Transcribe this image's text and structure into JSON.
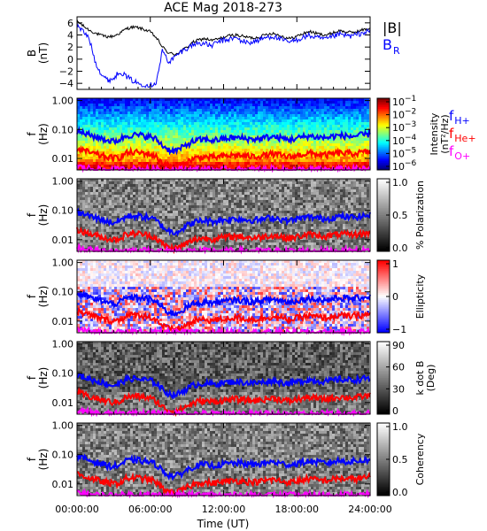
{
  "title": "ACE Mag 2018-273",
  "xaxis": {
    "label": "Time (UT)",
    "range_hours": [
      0,
      24
    ],
    "ticks": [
      {
        "h": 0,
        "label": "00:00:00"
      },
      {
        "h": 6,
        "label": "06:00:00"
      },
      {
        "h": 12,
        "label": "12:00:00"
      },
      {
        "h": 18,
        "label": "18:00:00"
      },
      {
        "h": 24,
        "label": "24:00:00"
      }
    ]
  },
  "freq_axis": {
    "log_range_hz": [
      0.004,
      1.2
    ],
    "ticks": [
      {
        "v": 1.0,
        "label": "1.00"
      },
      {
        "v": 0.1,
        "label": "0.10"
      },
      {
        "v": 0.01,
        "label": "0.01"
      }
    ]
  },
  "legend_B": {
    "total": "|B|",
    "radial_main": "B",
    "radial_sub": "R"
  },
  "legend_f": [
    {
      "main": "f",
      "sub": "H+",
      "color": "#0000ff"
    },
    {
      "main": "f",
      "sub": "He+",
      "color": "#ff0000"
    },
    {
      "main": "f",
      "sub": "O+",
      "color": "#ff00ff"
    }
  ],
  "colors": {
    "bmag": "#000000",
    "br": "#0000ff",
    "fH": "#0000ff",
    "fHe": "#ff0000",
    "fO": "#ff00ff"
  },
  "chart_data": [
    {
      "type": "line",
      "name": "panel-b",
      "ylabel_lines": [
        "B",
        "(nT)"
      ],
      "ylim": [
        -5,
        7
      ],
      "yticks": [
        {
          "v": 6,
          "label": "6"
        },
        {
          "v": 4,
          "label": "4"
        },
        {
          "v": 2,
          "label": "2"
        },
        {
          "v": 0,
          "label": "0"
        },
        {
          "v": -2,
          "label": "−2"
        },
        {
          "v": -4,
          "label": "−4"
        }
      ],
      "x_hours": [
        0,
        0.5,
        1,
        1.5,
        2,
        2.5,
        3,
        3.5,
        4,
        4.5,
        5,
        5.5,
        6,
        6.5,
        7,
        7.5,
        8,
        8.5,
        9,
        9.5,
        10,
        10.5,
        11,
        11.5,
        12,
        12.5,
        13,
        13.5,
        14,
        14.5,
        15,
        15.5,
        16,
        16.5,
        17,
        17.5,
        18,
        18.5,
        19,
        19.5,
        20,
        20.5,
        21,
        21.5,
        22,
        22.5,
        23,
        23.5,
        24
      ],
      "series": [
        {
          "name": "|B|",
          "values": [
            6.3,
            5.5,
            4.8,
            4.3,
            3.9,
            3.7,
            3.8,
            4.3,
            5.0,
            5.3,
            5.2,
            4.9,
            4.5,
            3.5,
            2.0,
            1.0,
            0.8,
            1.3,
            2.0,
            2.8,
            3.2,
            3.4,
            3.1,
            3.3,
            3.6,
            3.9,
            4.0,
            3.8,
            3.6,
            3.5,
            3.7,
            4.1,
            4.3,
            4.0,
            3.6,
            3.4,
            3.8,
            4.2,
            4.6,
            4.3,
            4.1,
            4.0,
            4.4,
            4.7,
            4.5,
            4.4,
            4.6,
            4.9,
            5.1
          ]
        },
        {
          "name": "B_R",
          "values": [
            5.5,
            4.6,
            3.4,
            -0.5,
            -2.5,
            -3.5,
            -3.2,
            -2.0,
            -2.8,
            -3.5,
            -4.0,
            -4.2,
            -4.3,
            -3.8,
            1.5,
            -0.5,
            0.3,
            1.2,
            1.8,
            2.4,
            2.7,
            2.5,
            2.2,
            2.8,
            3.1,
            3.3,
            3.5,
            3.0,
            2.7,
            2.9,
            3.2,
            3.6,
            3.8,
            3.4,
            3.0,
            2.8,
            3.2,
            3.6,
            3.9,
            3.6,
            3.4,
            3.3,
            3.8,
            4.1,
            3.9,
            3.8,
            4.1,
            4.4,
            4.6
          ]
        }
      ]
    },
    {
      "type": "heatmap",
      "name": "panel-intensity",
      "ylabel_lines": [
        "f",
        "(Hz)"
      ],
      "colorbar": {
        "scale": "jet",
        "label_lines": [
          "Intensity",
          "(nT²/Hz)"
        ],
        "ticks": [
          {
            "base": "10",
            "exp": "−1",
            "frac": 0.0
          },
          {
            "base": "10",
            "exp": "−2",
            "frac": 0.2
          },
          {
            "base": "10",
            "exp": "−3",
            "frac": 0.4
          },
          {
            "base": "10",
            "exp": "−4",
            "frac": 0.6
          },
          {
            "base": "10",
            "exp": "−5",
            "frac": 0.8
          },
          {
            "base": "10",
            "exp": "−6",
            "frac": 1.0
          }
        ]
      }
    },
    {
      "type": "heatmap",
      "name": "panel-polarization",
      "ylabel_lines": [
        "f",
        "(Hz)"
      ],
      "colorbar": {
        "scale": "gray",
        "label_lines": [
          "% Polarization"
        ],
        "ticks": [
          {
            "label": "1.0",
            "frac": 0.0
          },
          {
            "label": "0.5",
            "frac": 0.5
          },
          {
            "label": "0.0",
            "frac": 1.0
          }
        ]
      }
    },
    {
      "type": "heatmap",
      "name": "panel-ellipticity",
      "ylabel_lines": [
        "f",
        "(Hz)"
      ],
      "colorbar": {
        "scale": "bwr",
        "label_lines": [
          "Ellipticity"
        ],
        "ticks": [
          {
            "label": "1",
            "frac": 0.0
          },
          {
            "label": "0",
            "frac": 0.5
          },
          {
            "label": "−1",
            "frac": 1.0
          }
        ]
      }
    },
    {
      "type": "heatmap",
      "name": "panel-kdotb",
      "ylabel_lines": [
        "f",
        "(Hz)"
      ],
      "colorbar": {
        "scale": "gray",
        "label_lines": [
          "k dot B",
          "(Deg)"
        ],
        "ticks": [
          {
            "label": "90",
            "frac": 0.0
          },
          {
            "label": "60",
            "frac": 0.333
          },
          {
            "label": "30",
            "frac": 0.667
          },
          {
            "label": "0",
            "frac": 1.0
          }
        ]
      }
    },
    {
      "type": "heatmap",
      "name": "panel-coherency",
      "ylabel_lines": [
        "f",
        "(Hz)"
      ],
      "colorbar": {
        "scale": "gray",
        "label_lines": [
          "Coherency"
        ],
        "ticks": [
          {
            "label": "1.0",
            "frac": 0.0
          },
          {
            "label": "0.5",
            "frac": 0.5
          },
          {
            "label": "0.0",
            "frac": 1.0
          }
        ]
      }
    }
  ],
  "gyrofreq": {
    "x_hours": [
      0,
      0.5,
      1,
      1.5,
      2,
      2.5,
      3,
      3.5,
      4,
      4.5,
      5,
      5.5,
      6,
      6.5,
      7,
      7.5,
      8,
      8.5,
      9,
      9.5,
      10,
      10.5,
      11,
      11.5,
      12,
      12.5,
      13,
      13.5,
      14,
      14.5,
      15,
      15.5,
      16,
      16.5,
      17,
      17.5,
      18,
      18.5,
      19,
      19.5,
      20,
      20.5,
      21,
      21.5,
      22,
      22.5,
      23,
      23.5,
      24
    ],
    "fH": [
      0.085,
      0.075,
      0.065,
      0.055,
      0.05,
      0.042,
      0.038,
      0.045,
      0.06,
      0.065,
      0.063,
      0.06,
      0.055,
      0.045,
      0.028,
      0.02,
      0.018,
      0.022,
      0.03,
      0.038,
      0.043,
      0.045,
      0.042,
      0.044,
      0.047,
      0.05,
      0.052,
      0.05,
      0.047,
      0.046,
      0.048,
      0.053,
      0.056,
      0.052,
      0.047,
      0.045,
      0.05,
      0.055,
      0.06,
      0.056,
      0.053,
      0.052,
      0.058,
      0.062,
      0.059,
      0.058,
      0.061,
      0.065,
      0.068
    ],
    "fHe": [
      0.022,
      0.019,
      0.016,
      0.014,
      0.012,
      0.011,
      0.01,
      0.011,
      0.015,
      0.016,
      0.016,
      0.015,
      0.014,
      0.011,
      0.007,
      0.0055,
      0.005,
      0.0058,
      0.0075,
      0.0095,
      0.011,
      0.0112,
      0.0105,
      0.011,
      0.0118,
      0.0125,
      0.013,
      0.0125,
      0.0118,
      0.0115,
      0.012,
      0.0132,
      0.014,
      0.013,
      0.0118,
      0.0112,
      0.0125,
      0.0138,
      0.015,
      0.014,
      0.0132,
      0.013,
      0.0145,
      0.0155,
      0.0148,
      0.0145,
      0.0152,
      0.0162,
      0.017
    ],
    "fO": [
      0.0055,
      0.0048,
      0.0045,
      0.0042,
      0.0041,
      0.0041,
      0.0041,
      0.0041,
      0.0042,
      0.0043,
      0.0043,
      0.0042,
      0.0042,
      0.0041,
      0.0041,
      0.0041,
      0.0041,
      0.0041,
      0.0041,
      0.0041,
      0.0041,
      0.0041,
      0.0041,
      0.0041,
      0.0041,
      0.0041,
      0.0041,
      0.0041,
      0.0041,
      0.0041,
      0.0041,
      0.0041,
      0.0041,
      0.0041,
      0.0041,
      0.0041,
      0.0041,
      0.0041,
      0.0041,
      0.0041,
      0.0041,
      0.0041,
      0.0041,
      0.0042,
      0.0042,
      0.0042,
      0.0042,
      0.0042,
      0.0043
    ]
  }
}
